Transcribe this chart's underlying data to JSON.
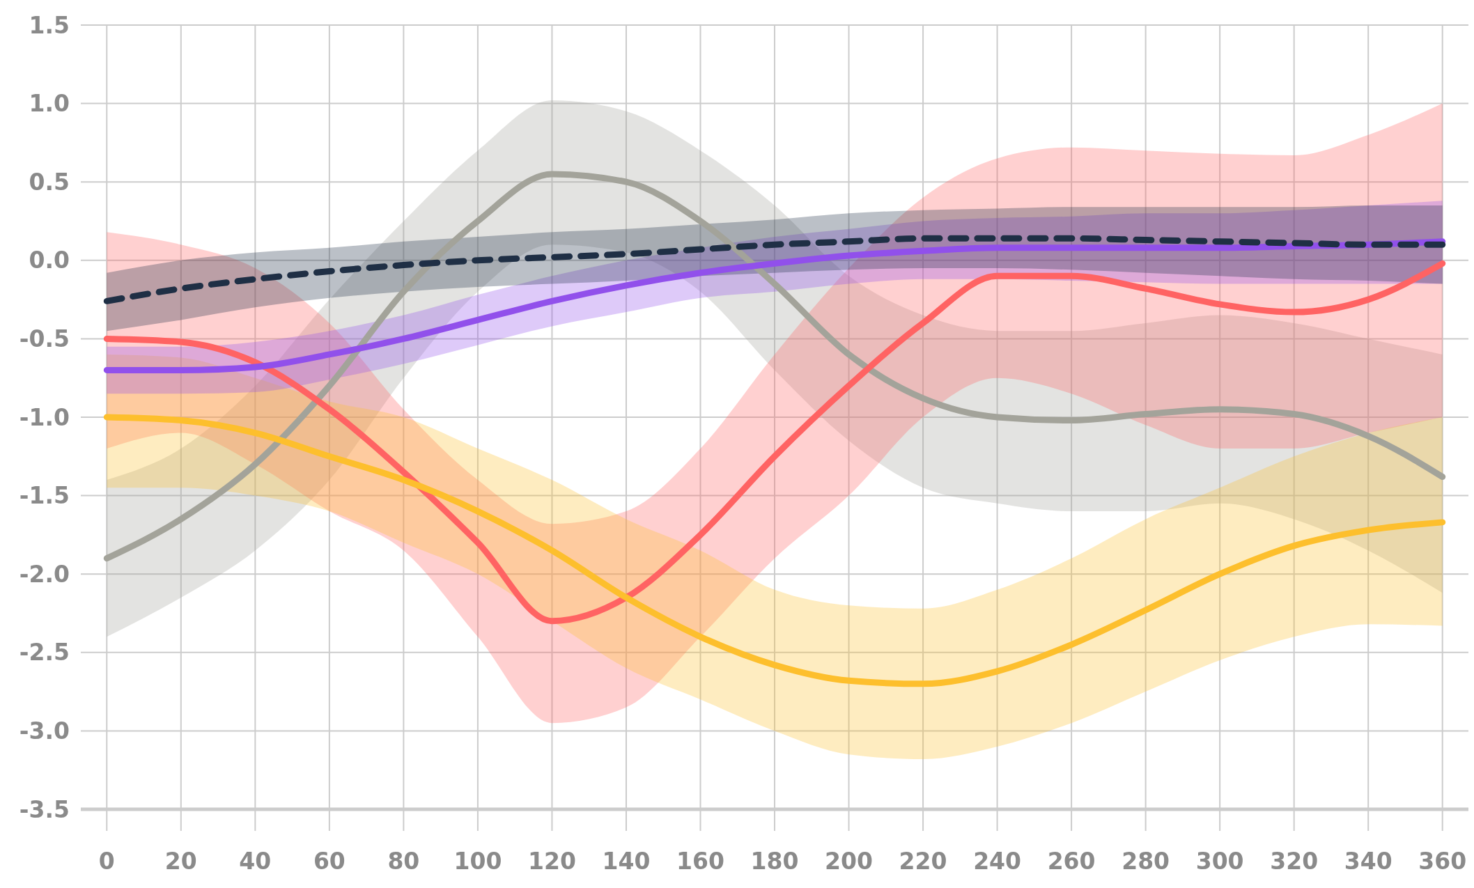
{
  "chart_data": {
    "type": "line",
    "x": [
      0,
      20,
      40,
      60,
      80,
      100,
      120,
      140,
      160,
      180,
      200,
      220,
      240,
      260,
      280,
      300,
      320,
      340,
      360
    ],
    "xlim": [
      -7,
      367
    ],
    "xticks": [
      0,
      20,
      40,
      60,
      80,
      100,
      120,
      140,
      160,
      180,
      200,
      220,
      240,
      260,
      280,
      300,
      320,
      340,
      360
    ],
    "ylim": [
      -3.5,
      1.5
    ],
    "yticks": [
      {
        "value": 1.5,
        "label": "1.5"
      },
      {
        "value": 1,
        "label": "1.0"
      },
      {
        "value": 0.5,
        "label": "0.5"
      },
      {
        "value": 0,
        "label": "0.0"
      },
      {
        "value": -0.5,
        "label": "-0.5"
      },
      {
        "value": -1,
        "label": "-1.0"
      },
      {
        "value": -1.5,
        "label": "-1.5"
      },
      {
        "value": -2,
        "label": "-2.0"
      },
      {
        "value": -2.5,
        "label": "-2.5"
      },
      {
        "value": -3,
        "label": "-3.0"
      },
      {
        "value": -3.5,
        "label": "-3.5"
      }
    ],
    "grid": true,
    "marker": "none",
    "series": [
      {
        "color": "#a3a39a",
        "line_style": "solid",
        "values": [
          -1.9,
          -1.65,
          -1.3,
          -0.8,
          -0.2,
          0.25,
          0.55,
          0.5,
          0.25,
          -0.15,
          -0.6,
          -0.88,
          -1.0,
          -1.02,
          -0.98,
          -0.95,
          -0.98,
          -1.12,
          -1.38
        ],
        "upper": [
          -1.4,
          -1.2,
          -0.8,
          -0.25,
          0.25,
          0.7,
          1.02,
          0.95,
          0.7,
          0.35,
          -0.1,
          -0.35,
          -0.45,
          -0.45,
          -0.4,
          -0.35,
          -0.4,
          -0.5,
          -0.6
        ],
        "lower": [
          -2.4,
          -2.15,
          -1.85,
          -1.4,
          -0.75,
          -0.2,
          0.1,
          0.05,
          -0.2,
          -0.7,
          -1.15,
          -1.45,
          -1.55,
          -1.6,
          -1.6,
          -1.55,
          -1.65,
          -1.85,
          -2.12
        ]
      },
      {
        "color": "#ff6363",
        "line_style": "solid",
        "values": [
          -0.5,
          -0.52,
          -0.65,
          -0.95,
          -1.35,
          -1.8,
          -2.3,
          -2.15,
          -1.75,
          -1.25,
          -0.8,
          -0.4,
          -0.1,
          -0.1,
          -0.18,
          -0.28,
          -0.33,
          -0.25,
          -0.02
        ],
        "upper": [
          0.18,
          0.1,
          -0.05,
          -0.4,
          -0.95,
          -1.4,
          -1.68,
          -1.6,
          -1.2,
          -0.6,
          -0.05,
          0.4,
          0.65,
          0.72,
          0.7,
          0.68,
          0.67,
          0.8,
          1.0
        ],
        "lower": [
          -1.2,
          -1.1,
          -1.3,
          -1.6,
          -1.85,
          -2.4,
          -2.95,
          -2.85,
          -2.4,
          -1.9,
          -1.5,
          -1.0,
          -0.75,
          -0.85,
          -1.05,
          -1.2,
          -1.2,
          -1.1,
          -1.0
        ]
      },
      {
        "color": "#fdbf2d",
        "line_style": "solid",
        "values": [
          -1.0,
          -1.02,
          -1.1,
          -1.25,
          -1.4,
          -1.6,
          -1.85,
          -2.15,
          -2.4,
          -2.58,
          -2.68,
          -2.7,
          -2.62,
          -2.45,
          -2.23,
          -2.0,
          -1.82,
          -1.72,
          -1.67
        ],
        "upper": [
          -0.6,
          -0.62,
          -0.75,
          -0.9,
          -1.0,
          -1.2,
          -1.4,
          -1.65,
          -1.85,
          -2.1,
          -2.2,
          -2.22,
          -2.1,
          -1.9,
          -1.65,
          -1.45,
          -1.25,
          -1.1,
          -1.0
        ],
        "lower": [
          -1.45,
          -1.45,
          -1.5,
          -1.6,
          -1.8,
          -2.0,
          -2.3,
          -2.6,
          -2.8,
          -3.0,
          -3.15,
          -3.18,
          -3.1,
          -2.95,
          -2.75,
          -2.55,
          -2.4,
          -2.32,
          -2.33
        ]
      },
      {
        "color": "#9150eb",
        "line_style": "solid",
        "values": [
          -0.7,
          -0.7,
          -0.68,
          -0.6,
          -0.5,
          -0.38,
          -0.26,
          -0.16,
          -0.08,
          -0.02,
          0.03,
          0.06,
          0.08,
          0.08,
          0.08,
          0.08,
          0.09,
          0.1,
          0.12
        ],
        "upper": [
          -0.55,
          -0.55,
          -0.52,
          -0.45,
          -0.35,
          -0.22,
          -0.1,
          0.0,
          0.08,
          0.15,
          0.2,
          0.25,
          0.27,
          0.28,
          0.3,
          0.3,
          0.32,
          0.35,
          0.38
        ],
        "lower": [
          -0.85,
          -0.85,
          -0.84,
          -0.76,
          -0.66,
          -0.54,
          -0.42,
          -0.33,
          -0.24,
          -0.2,
          -0.15,
          -0.12,
          -0.12,
          -0.13,
          -0.14,
          -0.15,
          -0.15,
          -0.15,
          -0.15
        ]
      },
      {
        "color": "#1f2f45",
        "line_style": "dashed",
        "values": [
          -0.26,
          -0.18,
          -0.12,
          -0.07,
          -0.03,
          0.0,
          0.02,
          0.04,
          0.07,
          0.1,
          0.12,
          0.14,
          0.14,
          0.14,
          0.13,
          0.12,
          0.11,
          0.1,
          0.1
        ],
        "upper": [
          -0.08,
          0.0,
          0.05,
          0.08,
          0.12,
          0.15,
          0.18,
          0.2,
          0.23,
          0.26,
          0.3,
          0.32,
          0.33,
          0.34,
          0.34,
          0.34,
          0.34,
          0.35,
          0.35
        ],
        "lower": [
          -0.45,
          -0.38,
          -0.3,
          -0.24,
          -0.2,
          -0.17,
          -0.15,
          -0.13,
          -0.1,
          -0.08,
          -0.06,
          -0.05,
          -0.05,
          -0.06,
          -0.08,
          -0.1,
          -0.12,
          -0.13,
          -0.15
        ]
      }
    ]
  }
}
